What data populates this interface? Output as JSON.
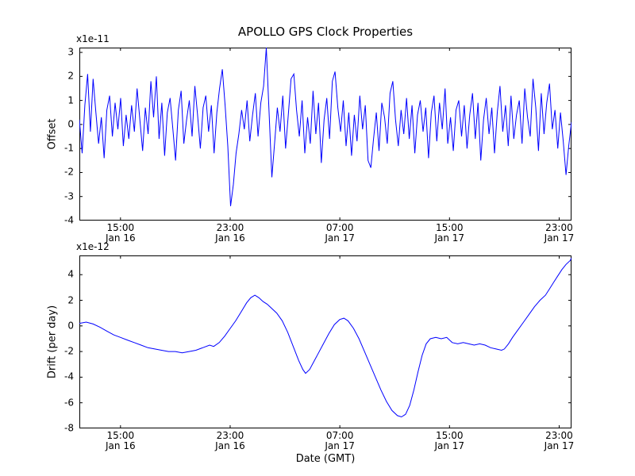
{
  "figure": {
    "title": "APOLLO GPS Clock Properties",
    "background": "#ffffff",
    "line_color": "#0000ff",
    "frame_color": "#000000"
  },
  "chart_data": [
    {
      "id": "offset",
      "type": "line",
      "ylabel": "Offset",
      "y_scale_label": "x1e-11",
      "color": "#0000ff",
      "x_description": "hours since Jan 16 12:00 GMT; values evenly spaced over xlim",
      "xlim": [
        0,
        35.9
      ],
      "ylim": [
        -4,
        3.2
      ],
      "yticks": [
        3,
        2,
        1,
        0,
        -1,
        -2,
        -3,
        -4
      ],
      "xticks": [
        {
          "hour": 3,
          "time": "15:00",
          "date": "Jan 16"
        },
        {
          "hour": 11,
          "time": "23:00",
          "date": "Jan 16"
        },
        {
          "hour": 19,
          "time": "07:00",
          "date": "Jan 17"
        },
        {
          "hour": 27,
          "time": "15:00",
          "date": "Jan 17"
        },
        {
          "hour": 35,
          "time": "23:00",
          "date": "Jan 17"
        }
      ],
      "values": [
        0.2,
        -1.2,
        0.8,
        2.1,
        -0.3,
        1.9,
        0.5,
        -0.8,
        0.3,
        -1.4,
        0.6,
        1.2,
        -0.5,
        0.9,
        -0.2,
        1.1,
        -0.9,
        0.4,
        -0.6,
        0.8,
        -0.3,
        1.5,
        0.2,
        -1.1,
        0.7,
        -0.4,
        1.8,
        0.3,
        2.0,
        -0.6,
        0.9,
        -1.3,
        0.5,
        1.1,
        -0.2,
        -1.5,
        0.6,
        1.4,
        -0.8,
        0.2,
        1.0,
        -0.5,
        1.6,
        0.4,
        -1.0,
        0.7,
        1.2,
        -0.3,
        0.8,
        -1.2,
        0.5,
        1.5,
        2.3,
        0.8,
        -0.9,
        -3.4,
        -2.5,
        -1.2,
        -0.4,
        0.6,
        -0.2,
        1.0,
        -0.7,
        0.4,
        1.3,
        -0.5,
        0.9,
        1.6,
        3.2,
        0.5,
        -2.2,
        -0.8,
        0.7,
        -0.3,
        1.2,
        -1.0,
        0.4,
        1.9,
        2.1,
        0.6,
        -0.5,
        1.0,
        -1.2,
        0.3,
        -0.8,
        1.4,
        -0.4,
        0.9,
        -1.6,
        0.2,
        1.1,
        -0.6,
        1.8,
        2.2,
        0.7,
        -0.3,
        1.0,
        -0.9,
        0.5,
        -1.3,
        0.4,
        -0.7,
        1.2,
        -0.2,
        0.8,
        -1.5,
        -1.8,
        -0.6,
        0.5,
        -1.1,
        0.9,
        0.3,
        -0.8,
        1.3,
        1.8,
        0.2,
        -0.9,
        0.6,
        -0.4,
        1.1,
        -0.6,
        0.8,
        -1.2,
        0.4,
        1.0,
        -0.3,
        0.7,
        -1.4,
        0.5,
        1.2,
        -0.7,
        0.9,
        -0.2,
        1.5,
        -0.8,
        0.3,
        -1.1,
        0.6,
        1.0,
        -0.5,
        0.8,
        -1.0,
        0.4,
        1.3,
        -0.6,
        0.9,
        -1.5,
        0.2,
        1.1,
        -0.4,
        0.7,
        -1.2,
        0.5,
        1.6,
        -0.3,
        0.8,
        -0.9,
        1.2,
        -0.6,
        0.4,
        1.0,
        -0.8,
        1.5,
        0.3,
        -0.5,
        1.9,
        0.7,
        -1.1,
        1.3,
        -0.4,
        0.9,
        1.7,
        -0.2,
        0.6,
        -1.0,
        0.5,
        -0.7,
        -2.1,
        -0.9,
        0.1
      ]
    },
    {
      "id": "drift",
      "type": "line",
      "ylabel": "Drift (per day)",
      "xlabel": "Date (GMT)",
      "y_scale_label": "x1e-12",
      "color": "#0000ff",
      "x_description": "hours since Jan 16 12:00 GMT",
      "xlim": [
        0,
        35.9
      ],
      "ylim": [
        -8,
        5.5
      ],
      "yticks": [
        4,
        2,
        0,
        -2,
        -4,
        -6,
        -8
      ],
      "xticks": [
        {
          "hour": 3,
          "time": "15:00",
          "date": "Jan 16"
        },
        {
          "hour": 11,
          "time": "23:00",
          "date": "Jan 16"
        },
        {
          "hour": 19,
          "time": "07:00",
          "date": "Jan 17"
        },
        {
          "hour": 27,
          "time": "15:00",
          "date": "Jan 17"
        },
        {
          "hour": 35,
          "time": "23:00",
          "date": "Jan 17"
        }
      ],
      "points": [
        [
          0,
          0.2
        ],
        [
          0.5,
          0.3
        ],
        [
          1,
          0.15
        ],
        [
          1.5,
          -0.1
        ],
        [
          2,
          -0.4
        ],
        [
          2.5,
          -0.7
        ],
        [
          3,
          -0.9
        ],
        [
          3.5,
          -1.1
        ],
        [
          4,
          -1.3
        ],
        [
          4.5,
          -1.5
        ],
        [
          5,
          -1.7
        ],
        [
          5.5,
          -1.8
        ],
        [
          6,
          -1.9
        ],
        [
          6.5,
          -2.0
        ],
        [
          7,
          -2.0
        ],
        [
          7.5,
          -2.1
        ],
        [
          8,
          -2.0
        ],
        [
          8.5,
          -1.9
        ],
        [
          9,
          -1.7
        ],
        [
          9.5,
          -1.5
        ],
        [
          9.8,
          -1.6
        ],
        [
          10.2,
          -1.3
        ],
        [
          10.6,
          -0.8
        ],
        [
          11,
          -0.2
        ],
        [
          11.4,
          0.4
        ],
        [
          11.8,
          1.1
        ],
        [
          12.2,
          1.8
        ],
        [
          12.5,
          2.2
        ],
        [
          12.8,
          2.4
        ],
        [
          13.1,
          2.2
        ],
        [
          13.4,
          1.9
        ],
        [
          13.7,
          1.7
        ],
        [
          14,
          1.4
        ],
        [
          14.4,
          1.0
        ],
        [
          14.8,
          0.4
        ],
        [
          15.2,
          -0.5
        ],
        [
          15.6,
          -1.6
        ],
        [
          16,
          -2.7
        ],
        [
          16.3,
          -3.4
        ],
        [
          16.5,
          -3.7
        ],
        [
          16.8,
          -3.4
        ],
        [
          17.1,
          -2.8
        ],
        [
          17.4,
          -2.2
        ],
        [
          17.8,
          -1.4
        ],
        [
          18.2,
          -0.6
        ],
        [
          18.6,
          0.1
        ],
        [
          19,
          0.5
        ],
        [
          19.3,
          0.6
        ],
        [
          19.6,
          0.4
        ],
        [
          20,
          -0.2
        ],
        [
          20.4,
          -1.0
        ],
        [
          20.8,
          -2.0
        ],
        [
          21.2,
          -3.0
        ],
        [
          21.6,
          -4.0
        ],
        [
          22,
          -5.0
        ],
        [
          22.4,
          -5.9
        ],
        [
          22.8,
          -6.6
        ],
        [
          23.2,
          -7.0
        ],
        [
          23.5,
          -7.1
        ],
        [
          23.8,
          -6.9
        ],
        [
          24.1,
          -6.2
        ],
        [
          24.4,
          -5.0
        ],
        [
          24.7,
          -3.6
        ],
        [
          25,
          -2.3
        ],
        [
          25.3,
          -1.4
        ],
        [
          25.6,
          -1.0
        ],
        [
          26,
          -0.9
        ],
        [
          26.4,
          -1.0
        ],
        [
          26.8,
          -0.9
        ],
        [
          27.2,
          -1.3
        ],
        [
          27.6,
          -1.4
        ],
        [
          28,
          -1.3
        ],
        [
          28.4,
          -1.4
        ],
        [
          28.8,
          -1.5
        ],
        [
          29.2,
          -1.4
        ],
        [
          29.6,
          -1.5
        ],
        [
          30,
          -1.7
        ],
        [
          30.4,
          -1.8
        ],
        [
          30.8,
          -1.9
        ],
        [
          31,
          -1.8
        ],
        [
          31.3,
          -1.4
        ],
        [
          31.6,
          -0.9
        ],
        [
          32,
          -0.3
        ],
        [
          32.4,
          0.3
        ],
        [
          32.8,
          0.9
        ],
        [
          33.2,
          1.5
        ],
        [
          33.6,
          2.0
        ],
        [
          34,
          2.4
        ],
        [
          34.3,
          2.9
        ],
        [
          34.6,
          3.4
        ],
        [
          34.9,
          3.9
        ],
        [
          35.2,
          4.4
        ],
        [
          35.5,
          4.8
        ],
        [
          35.8,
          5.1
        ],
        [
          35.9,
          5.3
        ]
      ]
    }
  ]
}
